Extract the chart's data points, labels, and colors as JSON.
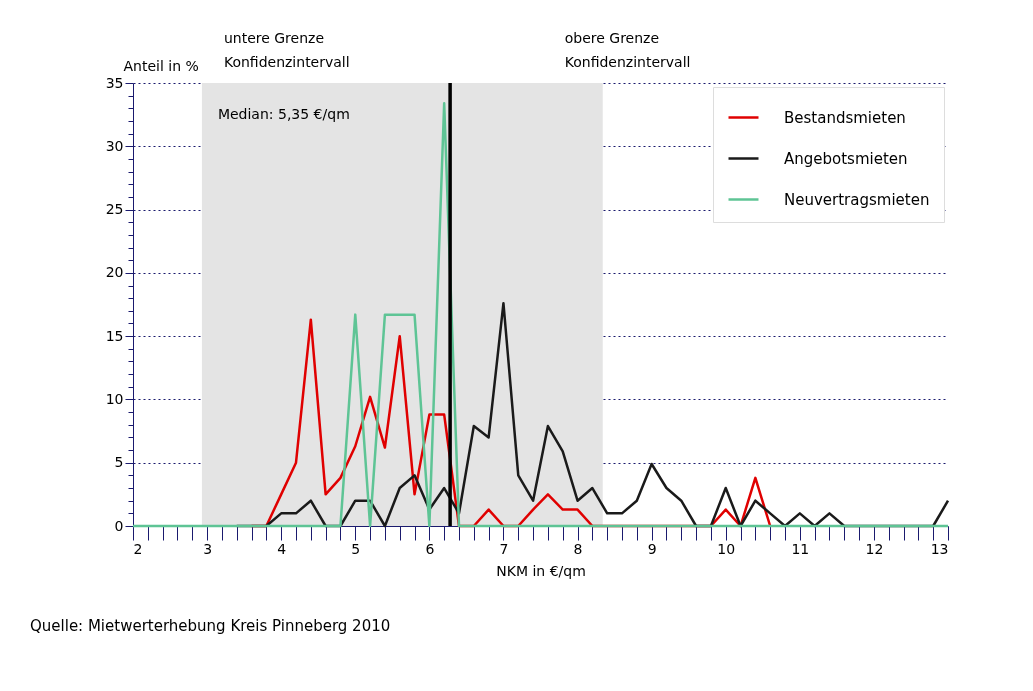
{
  "chart_data": {
    "type": "line",
    "xlabel": "NKM in €/qm",
    "ylabel": "Anteil in %",
    "x": [
      2,
      2.2,
      2.4,
      2.6,
      2.8,
      3,
      3.2,
      3.4,
      3.6,
      3.8,
      4,
      4.2,
      4.4,
      4.6,
      4.8,
      5,
      5.2,
      5.4,
      5.6,
      5.8,
      6,
      6.2,
      6.4,
      6.6,
      6.8,
      7,
      7.2,
      7.4,
      7.6,
      7.8,
      8,
      8.2,
      8.4,
      8.6,
      8.8,
      9,
      9.2,
      9.4,
      9.6,
      9.8,
      10,
      10.2,
      10.4,
      10.6,
      10.8,
      11,
      11.2,
      11.4,
      11.6,
      11.8,
      12,
      12.2,
      12.4,
      12.6,
      12.8,
      13
    ],
    "series": [
      {
        "name": "Bestandsmieten",
        "color": "#e00000",
        "values": [
          null,
          null,
          null,
          null,
          null,
          null,
          null,
          null,
          0,
          0,
          2.5,
          5,
          16.3,
          2.5,
          3.8,
          6.3,
          10.2,
          6.2,
          15,
          2.5,
          8.8,
          8.8,
          0,
          0,
          1.3,
          0,
          0,
          1.3,
          2.5,
          1.3,
          1.3,
          0,
          0,
          0,
          0,
          0,
          0,
          0,
          0,
          0,
          1.3,
          0,
          3.8,
          0,
          null,
          null,
          null,
          null,
          null,
          null,
          null,
          null,
          null,
          null,
          null,
          null
        ]
      },
      {
        "name": "Angebotsmieten",
        "color": "#1a1a1a",
        "values": [
          null,
          null,
          null,
          null,
          null,
          null,
          null,
          0,
          0,
          0,
          1,
          1,
          2,
          0,
          0,
          2,
          2,
          0,
          3,
          4,
          1.3,
          3,
          1,
          7.9,
          7,
          17.6,
          4,
          2,
          7.9,
          5.9,
          2,
          3,
          1,
          1,
          2,
          4.9,
          3,
          2,
          0,
          0,
          3,
          0,
          2,
          1,
          0,
          1,
          0,
          1,
          0,
          0,
          0,
          0,
          0,
          0,
          0,
          2
        ]
      },
      {
        "name": "Neuvertragsmieten",
        "color": "#5ec495",
        "values": [
          0,
          0,
          0,
          0,
          0,
          0,
          0,
          0,
          0,
          0,
          0,
          0,
          0,
          0,
          0,
          16.7,
          0,
          16.7,
          16.7,
          16.7,
          0,
          33.4,
          0,
          0,
          0,
          0,
          0,
          0,
          0,
          0,
          0,
          0,
          0,
          0,
          0,
          0,
          0,
          0,
          0,
          0,
          0,
          0,
          0,
          0,
          0,
          0,
          0,
          0,
          0,
          0,
          0,
          0,
          0,
          0,
          0,
          0
        ]
      }
    ],
    "xlim": [
      2,
      13
    ],
    "xticks": [
      2,
      {
        "value": 2.2,
        "label": null
      },
      {
        "value": 2.4,
        "label": null
      },
      {
        "value": 2.6,
        "label": null
      },
      {
        "value": 2.8,
        "label": null
      },
      3,
      {
        "value": 3.2,
        "label": null
      },
      {
        "value": 3.4,
        "label": null
      },
      {
        "value": 3.6,
        "label": null
      },
      {
        "value": 3.8,
        "label": null
      },
      4,
      {
        "value": 4.2,
        "label": null
      },
      {
        "value": 4.4,
        "label": null
      },
      {
        "value": 4.6,
        "label": null
      },
      {
        "value": 4.8,
        "label": null
      },
      5,
      {
        "value": 5.2,
        "label": null
      },
      {
        "value": 5.4,
        "label": null
      },
      {
        "value": 5.6,
        "label": null
      },
      {
        "value": 5.8,
        "label": null
      },
      6,
      {
        "value": 6.2,
        "label": null
      },
      {
        "value": 6.4,
        "label": null
      },
      {
        "value": 6.6,
        "label": null
      },
      {
        "value": 6.8,
        "label": null
      },
      7,
      {
        "value": 7.2,
        "label": null
      },
      {
        "value": 7.4,
        "label": null
      },
      {
        "value": 7.6,
        "label": null
      },
      {
        "value": 7.8,
        "label": null
      },
      8,
      {
        "value": 8.2,
        "label": null
      },
      {
        "value": 8.4,
        "label": null
      },
      {
        "value": 8.6,
        "label": null
      },
      {
        "value": 8.8,
        "label": null
      },
      9,
      {
        "value": 9.2,
        "label": null
      },
      {
        "value": 9.4,
        "label": null
      },
      {
        "value": 9.6,
        "label": null
      },
      {
        "value": 9.8,
        "label": null
      },
      10,
      {
        "value": 10.2,
        "label": null
      },
      {
        "value": 10.4,
        "label": null
      },
      {
        "value": 10.6,
        "label": null
      },
      {
        "value": 10.8,
        "label": null
      },
      11,
      {
        "value": 11.2,
        "label": null
      },
      {
        "value": 11.4,
        "label": null
      },
      {
        "value": 11.6,
        "label": null
      },
      {
        "value": 11.8,
        "label": null
      },
      12,
      {
        "value": 12.2,
        "label": null
      },
      {
        "value": 12.4,
        "label": null
      },
      {
        "value": 12.6,
        "label": null
      },
      {
        "value": 12.8,
        "label": null
      },
      13
    ],
    "ylim": [
      0,
      35
    ],
    "yticks": [
      0,
      {
        "value": 1,
        "label": null
      },
      {
        "value": 2,
        "label": null
      },
      {
        "value": 3,
        "label": null
      },
      {
        "value": 4,
        "label": null
      },
      5,
      {
        "value": 6,
        "label": null
      },
      {
        "value": 7,
        "label": null
      },
      {
        "value": 8,
        "label": null
      },
      {
        "value": 9,
        "label": null
      },
      10,
      {
        "value": 11,
        "label": null
      },
      {
        "value": 12,
        "label": null
      },
      {
        "value": 13,
        "label": null
      },
      {
        "value": 14,
        "label": null
      },
      15,
      {
        "value": 16,
        "label": null
      },
      {
        "value": 17,
        "label": null
      },
      {
        "value": 18,
        "label": null
      },
      {
        "value": 19,
        "label": null
      },
      20,
      {
        "value": 21,
        "label": null
      },
      {
        "value": 22,
        "label": null
      },
      {
        "value": 23,
        "label": null
      },
      {
        "value": 24,
        "label": null
      },
      25,
      {
        "value": 26,
        "label": null
      },
      {
        "value": 27,
        "label": null
      },
      {
        "value": 28,
        "label": null
      },
      {
        "value": 29,
        "label": null
      },
      30,
      {
        "value": 31,
        "label": null
      },
      {
        "value": 32,
        "label": null
      },
      {
        "value": 33,
        "label": null
      },
      {
        "value": 34,
        "label": null
      },
      35
    ],
    "grid": "y",
    "legend": "top right",
    "line_style": "solid",
    "ref_lines": [
      {
        "axis": "x",
        "value": 6.28,
        "color": "#000000"
      }
    ],
    "bands": [
      {
        "axis": "x",
        "from": 2.93,
        "to": 8.34,
        "color": "#e4e4e4"
      }
    ],
    "annotations": [
      "untere Grenze\nKonfidenzintervall",
      "obere Grenze\nKonfidenzintervall",
      "Median: 5,35 €/qm",
      "Quelle: Mietwerterhebung Kreis Pinneberg 2010"
    ]
  }
}
